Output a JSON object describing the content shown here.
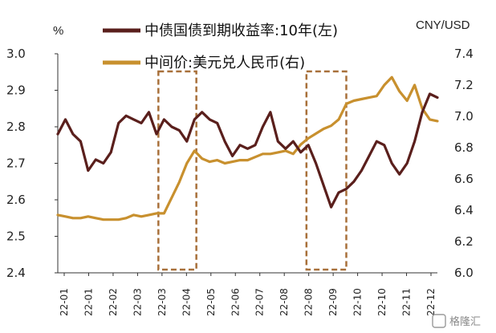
{
  "chart_data": {
    "type": "line",
    "left_unit": "%",
    "right_unit": "CNY/USD",
    "left_axis": {
      "min": 2.4,
      "max": 3.0,
      "ticks": [
        "2.4",
        "2.5",
        "2.6",
        "2.7",
        "2.8",
        "2.9",
        "3.0"
      ]
    },
    "right_axis": {
      "min": 6.0,
      "max": 7.4,
      "ticks": [
        "6.0",
        "6.2",
        "6.4",
        "6.6",
        "6.8",
        "7.0",
        "7.2",
        "7.4"
      ]
    },
    "x_tick_labels": [
      "22-01",
      "22-01",
      "22-02",
      "22-03",
      "22-03",
      "22-04",
      "22-05",
      "22-06",
      "22-07",
      "22-08",
      "22-08",
      "22-09",
      "22-10",
      "22-10",
      "22-11",
      "22-12"
    ],
    "series": [
      {
        "name": "中债国债到期收益率:10年(左)",
        "axis": "left",
        "color": "#5a1f1c",
        "x": [
          0,
          2,
          4,
          6,
          7,
          8,
          10,
          12,
          14,
          16,
          18,
          20,
          22,
          24,
          26,
          28,
          30,
          32,
          34,
          36,
          38,
          40,
          42,
          44,
          46,
          48,
          50,
          52,
          54,
          56,
          58,
          60,
          62,
          64,
          66,
          68,
          70,
          72,
          74,
          76,
          78,
          80,
          82,
          84,
          86,
          88,
          90,
          92,
          94,
          96,
          98,
          100
        ],
        "values": [
          2.78,
          2.82,
          2.78,
          2.76,
          2.72,
          2.68,
          2.71,
          2.7,
          2.73,
          2.81,
          2.83,
          2.82,
          2.81,
          2.84,
          2.78,
          2.82,
          2.8,
          2.79,
          2.76,
          2.82,
          2.84,
          2.82,
          2.81,
          2.76,
          2.72,
          2.75,
          2.74,
          2.75,
          2.8,
          2.84,
          2.76,
          2.74,
          2.76,
          2.73,
          2.75,
          2.7,
          2.64,
          2.58,
          2.62,
          2.63,
          2.65,
          2.68,
          2.72,
          2.76,
          2.75,
          2.7,
          2.67,
          2.7,
          2.76,
          2.84,
          2.89,
          2.88
        ]
      },
      {
        "name": "中间价:美元兑人民币(右)",
        "axis": "right",
        "color": "#c8902e",
        "x": [
          0,
          2,
          4,
          6,
          8,
          10,
          12,
          14,
          16,
          18,
          20,
          22,
          24,
          26,
          28,
          30,
          32,
          34,
          36,
          38,
          40,
          42,
          44,
          46,
          48,
          50,
          52,
          54,
          56,
          58,
          60,
          62,
          64,
          66,
          68,
          70,
          72,
          74,
          76,
          78,
          80,
          82,
          84,
          86,
          88,
          90,
          92,
          94,
          96,
          98,
          100
        ],
        "values": [
          6.37,
          6.36,
          6.35,
          6.35,
          6.36,
          6.35,
          6.34,
          6.34,
          6.34,
          6.35,
          6.37,
          6.36,
          6.37,
          6.38,
          6.38,
          6.48,
          6.58,
          6.7,
          6.78,
          6.73,
          6.71,
          6.72,
          6.7,
          6.71,
          6.72,
          6.72,
          6.74,
          6.76,
          6.76,
          6.77,
          6.78,
          6.76,
          6.82,
          6.86,
          6.89,
          6.92,
          6.94,
          6.98,
          7.08,
          7.1,
          7.11,
          7.12,
          7.13,
          7.2,
          7.25,
          7.16,
          7.1,
          7.2,
          7.05,
          6.98,
          6.97
        ]
      }
    ],
    "highlight_boxes": [
      {
        "x_start": 26.5,
        "x_end": 36.5
      },
      {
        "x_start": 65.5,
        "x_end": 76.0
      }
    ]
  },
  "watermark": "格隆汇"
}
